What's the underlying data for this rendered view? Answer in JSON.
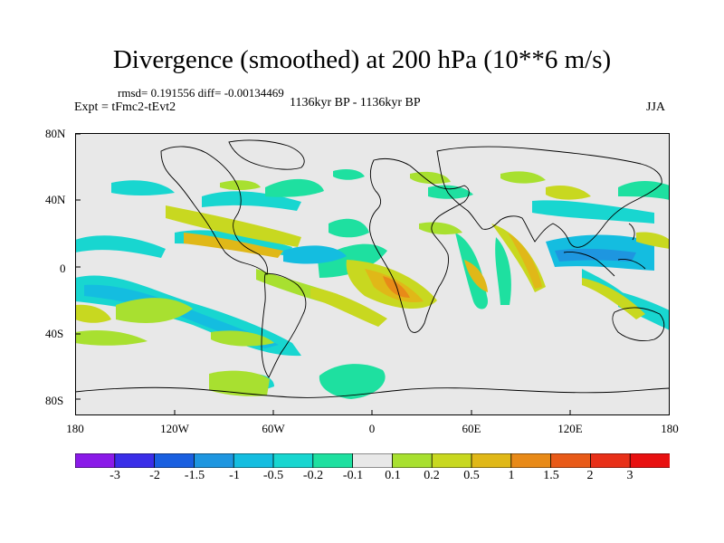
{
  "title": "Divergence (smoothed) at 200 hPa (10**6 m/s)",
  "stats": "rmsd= 0.191556  diff= -0.00134469",
  "expt": "Expt = tFmc2-tEvt2",
  "period": "1136kyr BP - 1136kyr BP",
  "season": "JJA",
  "y_ticks": [
    "80N",
    "40N",
    "0",
    "40S",
    "80S"
  ],
  "x_ticks": [
    "180",
    "120W",
    "60W",
    "0",
    "60E",
    "120E",
    "180"
  ],
  "colorbar": {
    "labels": [
      "-3",
      "-2",
      "-1.5",
      "-1",
      "-0.5",
      "-0.2",
      "-0.1",
      "0.1",
      "0.2",
      "0.5",
      "1",
      "1.5",
      "2",
      "3"
    ],
    "colors": [
      "#8a1ae8",
      "#3a2ee8",
      "#1a5fe0",
      "#1e96e0",
      "#14bde0",
      "#18d6d0",
      "#1ee0a0",
      "#e8e8e8",
      "#a8e030",
      "#c8d820",
      "#e0b818",
      "#e88a18",
      "#e85a18",
      "#e83018",
      "#e81010"
    ]
  },
  "colors": {
    "land_bg": "#e8e8e8",
    "coast": "#000000"
  }
}
